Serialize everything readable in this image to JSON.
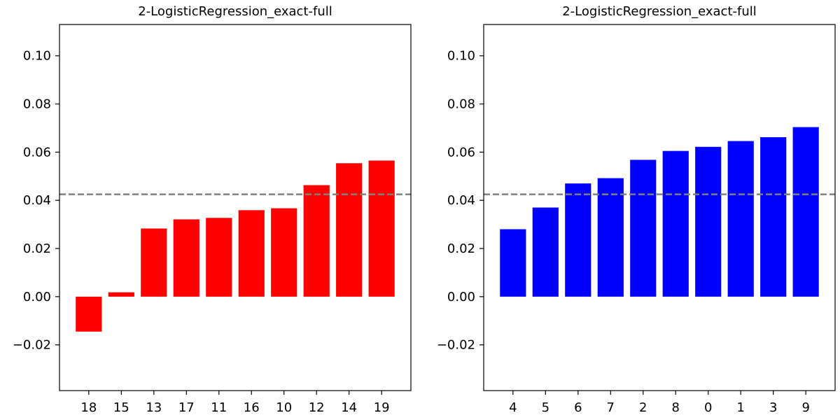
{
  "chart_data": [
    {
      "type": "bar",
      "title": "2-LogisticRegression_exact-full",
      "xlabel": "",
      "ylabel": "",
      "categories": [
        "18",
        "15",
        "13",
        "17",
        "11",
        "16",
        "10",
        "12",
        "14",
        "19"
      ],
      "values": [
        -0.0145,
        0.0018,
        0.0283,
        0.0321,
        0.0327,
        0.0359,
        0.0367,
        0.0463,
        0.0554,
        0.0565
      ],
      "bar_color": "#ff0000",
      "reference_line": {
        "y": 0.0425,
        "style": "dashed",
        "color": "#808080"
      },
      "ylim": [
        -0.039,
        0.113
      ],
      "yticks": [
        -0.02,
        0.0,
        0.02,
        0.04,
        0.06,
        0.08,
        0.1
      ],
      "ytick_labels": [
        "−0.02",
        "0.00",
        "0.02",
        "0.04",
        "0.06",
        "0.08",
        "0.10"
      ],
      "grid": false,
      "legend": "none"
    },
    {
      "type": "bar",
      "title": "2-LogisticRegression_exact-full",
      "xlabel": "",
      "ylabel": "",
      "categories": [
        "4",
        "5",
        "6",
        "7",
        "2",
        "8",
        "0",
        "1",
        "3",
        "9"
      ],
      "values": [
        0.028,
        0.037,
        0.047,
        0.0492,
        0.0568,
        0.0605,
        0.0622,
        0.0646,
        0.0662,
        0.0704
      ],
      "bar_color": "#0000ff",
      "reference_line": {
        "y": 0.0425,
        "style": "dashed",
        "color": "#808080"
      },
      "ylim": [
        -0.039,
        0.113
      ],
      "yticks": [
        -0.02,
        0.0,
        0.02,
        0.04,
        0.06,
        0.08,
        0.1
      ],
      "ytick_labels": [
        "−0.02",
        "0.00",
        "0.02",
        "0.04",
        "0.06",
        "0.08",
        "0.10"
      ],
      "grid": false,
      "legend": "none"
    }
  ]
}
